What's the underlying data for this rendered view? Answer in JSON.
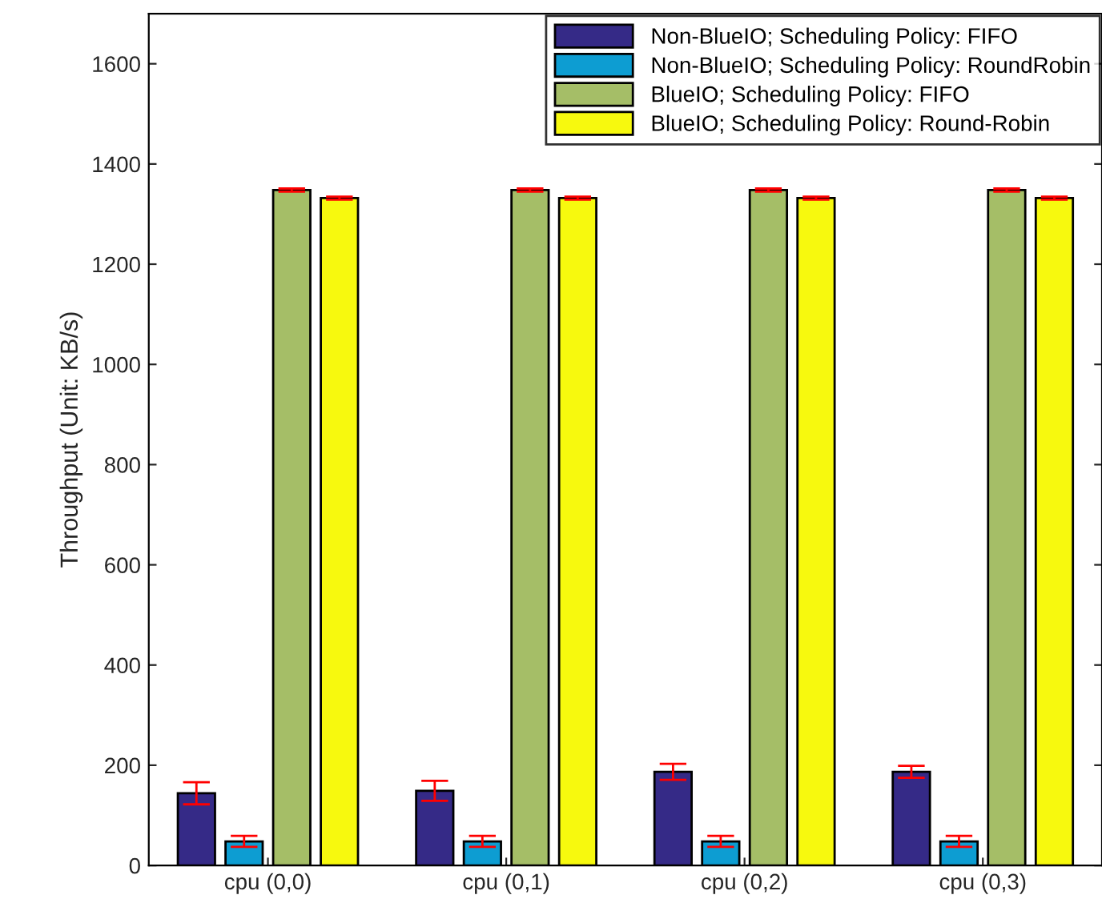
{
  "chart_data": {
    "type": "bar",
    "ylabel": "Throughput (Unit: KB/s)",
    "categories": [
      "cpu (0,0)",
      "cpu (0,1)",
      "cpu (0,2)",
      "cpu (0,3)"
    ],
    "series": [
      {
        "name": "Non-BlueIO; Scheduling Policy: FIFO",
        "color": "#352a87",
        "values": [
          144,
          149,
          187,
          187
        ],
        "errors": [
          22,
          20,
          16,
          12
        ]
      },
      {
        "name": "Non-BlueIO; Scheduling Policy: RoundRobin",
        "color": "#0d9dd2",
        "values": [
          48,
          48,
          48,
          48
        ],
        "errors": [
          11,
          11,
          11,
          11
        ]
      },
      {
        "name": "BlueIO; Scheduling Policy: FIFO",
        "color": "#a5be67",
        "values": [
          1348,
          1348,
          1348,
          1348
        ],
        "errors": [
          3,
          3,
          3,
          3
        ]
      },
      {
        "name": "BlueIO; Scheduling Policy: Round-Robin",
        "color": "#f7f90e",
        "values": [
          1332,
          1332,
          1332,
          1332
        ],
        "errors": [
          3,
          3,
          3,
          3
        ]
      }
    ],
    "ylim": [
      0,
      1700
    ],
    "yticks": [
      0,
      200,
      400,
      600,
      800,
      1000,
      1200,
      1400,
      1600
    ],
    "grid": false,
    "legend": "top right"
  }
}
